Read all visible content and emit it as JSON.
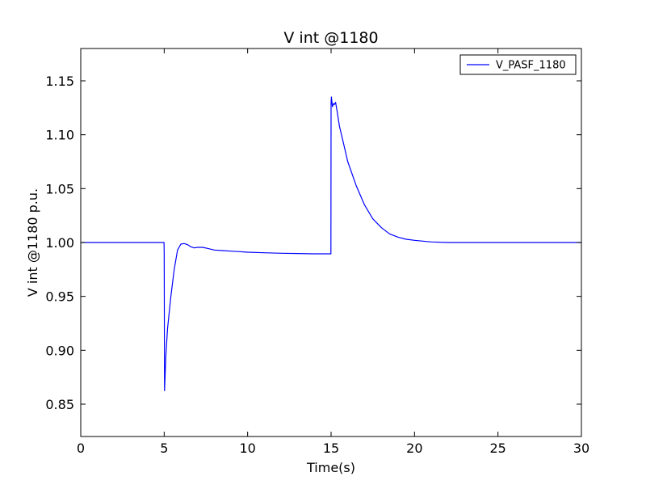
{
  "chart_data": {
    "type": "line",
    "title": "V int @1180",
    "xlabel": "Time(s)",
    "ylabel": "V int @1180 p.u.",
    "xlim": [
      0,
      30
    ],
    "ylim": [
      0.82,
      1.18
    ],
    "xticks": [
      0,
      5,
      10,
      15,
      20,
      25,
      30
    ],
    "yticks": [
      0.85,
      0.9,
      0.95,
      1.0,
      1.05,
      1.1,
      1.15
    ],
    "xtick_labels": [
      "0",
      "5",
      "10",
      "15",
      "20",
      "25",
      "30"
    ],
    "ytick_labels": [
      "0.85",
      "0.90",
      "0.95",
      "1.00",
      "1.05",
      "1.10",
      "1.15"
    ],
    "grid": false,
    "legend_position": "top-right",
    "series": [
      {
        "name": "V_PASF_1180",
        "color": "#0000ff",
        "x": [
          0,
          4.99,
          5.0,
          5.02,
          5.1,
          5.2,
          5.4,
          5.6,
          5.8,
          6.0,
          6.2,
          6.4,
          6.6,
          6.8,
          7.0,
          7.3,
          7.6,
          8.0,
          8.5,
          9.0,
          9.5,
          10.0,
          11.0,
          12.0,
          13.0,
          14.0,
          14.99,
          15.0,
          15.02,
          15.08,
          15.15,
          15.2,
          15.27,
          15.35,
          15.5,
          15.7,
          16.0,
          16.5,
          17.0,
          17.5,
          18.0,
          18.5,
          19.0,
          19.5,
          20.0,
          21.0,
          22.0,
          23.0,
          25.0,
          27.0,
          30.0
        ],
        "y": [
          1.0,
          1.0,
          0.99,
          0.8625,
          0.895,
          0.92,
          0.95,
          0.975,
          0.993,
          0.9985,
          0.999,
          0.998,
          0.996,
          0.995,
          0.9955,
          0.9955,
          0.9945,
          0.993,
          0.9925,
          0.992,
          0.9915,
          0.991,
          0.9905,
          0.99,
          0.9898,
          0.9895,
          0.9895,
          1.13,
          1.135,
          1.126,
          1.129,
          1.128,
          1.13,
          1.123,
          1.108,
          1.095,
          1.075,
          1.053,
          1.035,
          1.022,
          1.014,
          1.008,
          1.005,
          1.003,
          1.002,
          1.0005,
          1.0,
          1.0,
          1.0,
          1.0,
          1.0
        ]
      }
    ]
  }
}
